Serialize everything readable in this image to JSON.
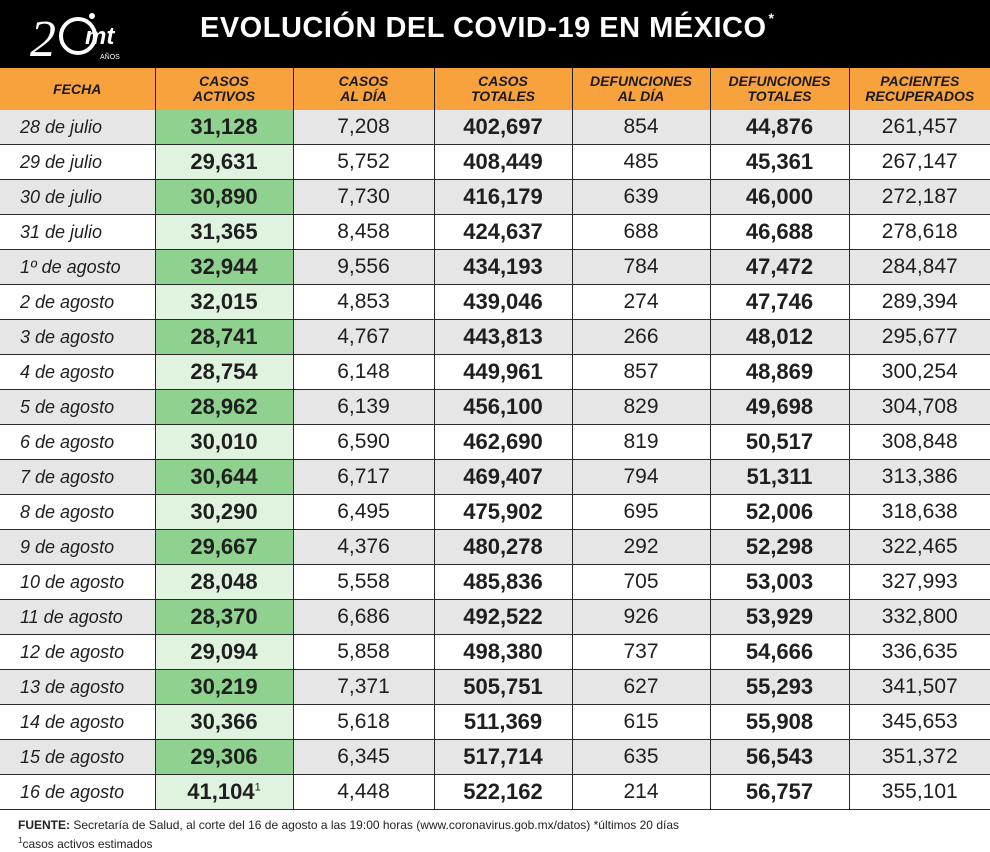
{
  "header": {
    "logo_text": "20mt",
    "logo_sub": "AÑOS",
    "title": "EVOLUCIÓN DEL COVID-19 EN MÉXICO",
    "title_mark": "*"
  },
  "columns": [
    "FECHA",
    "CASOS ACTIVOS",
    "CASOS AL DÍA",
    "CASOS TOTALES",
    "DEFUNCIONES AL DÍA",
    "DEFUNCIONES TOTALES",
    "PACIENTES RECUPERADOS"
  ],
  "rows": [
    [
      "28 de julio",
      "31,128",
      "7,208",
      "402,697",
      "854",
      "44,876",
      "261,457"
    ],
    [
      "29 de julio",
      "29,631",
      "5,752",
      "408,449",
      "485",
      "45,361",
      "267,147"
    ],
    [
      "30 de julio",
      "30,890",
      "7,730",
      "416,179",
      "639",
      "46,000",
      "272,187"
    ],
    [
      "31 de julio",
      "31,365",
      "8,458",
      "424,637",
      "688",
      "46,688",
      "278,618"
    ],
    [
      "1º de agosto",
      "32,944",
      "9,556",
      "434,193",
      "784",
      "47,472",
      "284,847"
    ],
    [
      "2 de agosto",
      "32,015",
      "4,853",
      "439,046",
      "274",
      "47,746",
      "289,394"
    ],
    [
      "3 de agosto",
      "28,741",
      "4,767",
      "443,813",
      "266",
      "48,012",
      "295,677"
    ],
    [
      "4 de agosto",
      "28,754",
      "6,148",
      "449,961",
      "857",
      "48,869",
      "300,254"
    ],
    [
      "5 de agosto",
      "28,962",
      "6,139",
      "456,100",
      "829",
      "49,698",
      "304,708"
    ],
    [
      "6 de agosto",
      "30,010",
      "6,590",
      "462,690",
      "819",
      "50,517",
      "308,848"
    ],
    [
      "7 de agosto",
      "30,644",
      "6,717",
      "469,407",
      "794",
      "51,311",
      "313,386"
    ],
    [
      "8 de agosto",
      "30,290",
      "6,495",
      "475,902",
      "695",
      "52,006",
      "318,638"
    ],
    [
      "9 de agosto",
      "29,667",
      "4,376",
      "480,278",
      "292",
      "52,298",
      "322,465"
    ],
    [
      "10 de agosto",
      "28,048",
      "5,558",
      "485,836",
      "705",
      "53,003",
      "327,993"
    ],
    [
      "11 de agosto",
      "28,370",
      "6,686",
      "492,522",
      "926",
      "53,929",
      "332,800"
    ],
    [
      "12 de agosto",
      "29,094",
      "5,858",
      "498,380",
      "737",
      "54,666",
      "336,635"
    ],
    [
      "13 de agosto",
      "30,219",
      "7,371",
      "505,751",
      "627",
      "55,293",
      "341,507"
    ],
    [
      "14 de agosto",
      "30,366",
      "5,618",
      "511,369",
      "615",
      "55,908",
      "345,653"
    ],
    [
      "15 de agosto",
      "29,306",
      "6,345",
      "517,714",
      "635",
      "56,543",
      "351,372"
    ],
    [
      "16 de agosto",
      "41,104",
      "4,448",
      "522,162",
      "214",
      "56,757",
      "355,101"
    ]
  ],
  "last_row_mark": "1",
  "footer": {
    "source_label": "FUENTE:",
    "source_text": " Secretaría de Salud, al corte del 16 de agosto a las 19:00 horas (www.coronavirus.gob.mx/datos) *últimos 20 días",
    "note_mark": "1",
    "note_text": "casos activos estimados"
  },
  "colors": {
    "header_bg": "#000000",
    "column_header_bg": "#f7a23d",
    "active_highlight": "#8fd18f",
    "active_light": "#dff3df"
  }
}
